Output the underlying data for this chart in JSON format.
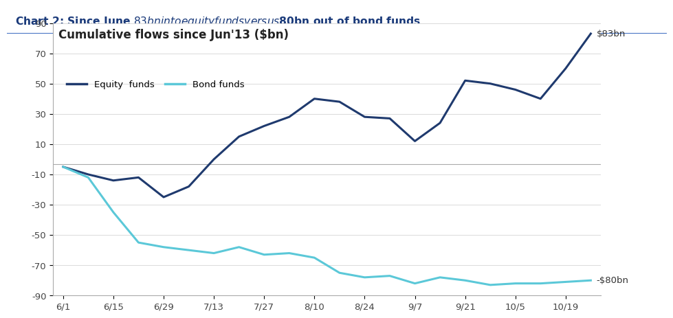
{
  "title_main": "Chart 2: Since June $83bn into equity funds versus $80bn out of bond funds",
  "chart_label": "Cumulative flows since Jun'13 ($bn)",
  "title_color": "#1a3a7a",
  "title_bg": "#c8d4e4",
  "background_color": "#ffffff",
  "x_labels": [
    "6/1",
    "6/15",
    "6/29",
    "7/13",
    "7/27",
    "8/10",
    "8/24",
    "9/7",
    "9/21",
    "10/5",
    "10/19"
  ],
  "equity_color": "#1f3a6e",
  "bond_color": "#5bc8d8",
  "ylim": [
    -90,
    90
  ],
  "yticks": [
    -90,
    -70,
    -50,
    -30,
    -10,
    10,
    30,
    50,
    70,
    90
  ],
  "hline_y": -3,
  "annotation_83": "$83bn",
  "annotation_80": "-$80bn",
  "legend_equity": "Equity  funds",
  "legend_bond": "Bond funds",
  "grid_color": "#cccccc",
  "spine_color": "#aaaaaa",
  "line_width": 2.2,
  "equity_x": [
    0,
    0.5,
    1.0,
    1.5,
    2.0,
    2.5,
    3.0,
    3.5,
    4.0,
    4.5,
    5.0,
    5.5,
    6.0,
    6.5,
    7.0,
    7.5,
    8.0,
    8.5,
    9.0,
    9.5,
    10.0,
    10.5
  ],
  "equity_y": [
    -5,
    -10,
    -14,
    -12,
    -25,
    -18,
    0,
    15,
    22,
    28,
    40,
    38,
    28,
    27,
    12,
    24,
    52,
    50,
    46,
    40,
    60,
    83
  ],
  "bond_x": [
    0,
    0.5,
    1.0,
    1.5,
    2.0,
    2.5,
    3.0,
    3.5,
    4.0,
    4.5,
    5.0,
    5.5,
    6.0,
    6.5,
    7.0,
    7.5,
    8.0,
    8.5,
    9.0,
    9.5,
    10.0,
    10.5
  ],
  "bond_y": [
    -5,
    -12,
    -35,
    -55,
    -58,
    -60,
    -62,
    -58,
    -63,
    -62,
    -65,
    -75,
    -78,
    -77,
    -82,
    -78,
    -80,
    -83,
    -82,
    -82,
    -81,
    -80
  ]
}
